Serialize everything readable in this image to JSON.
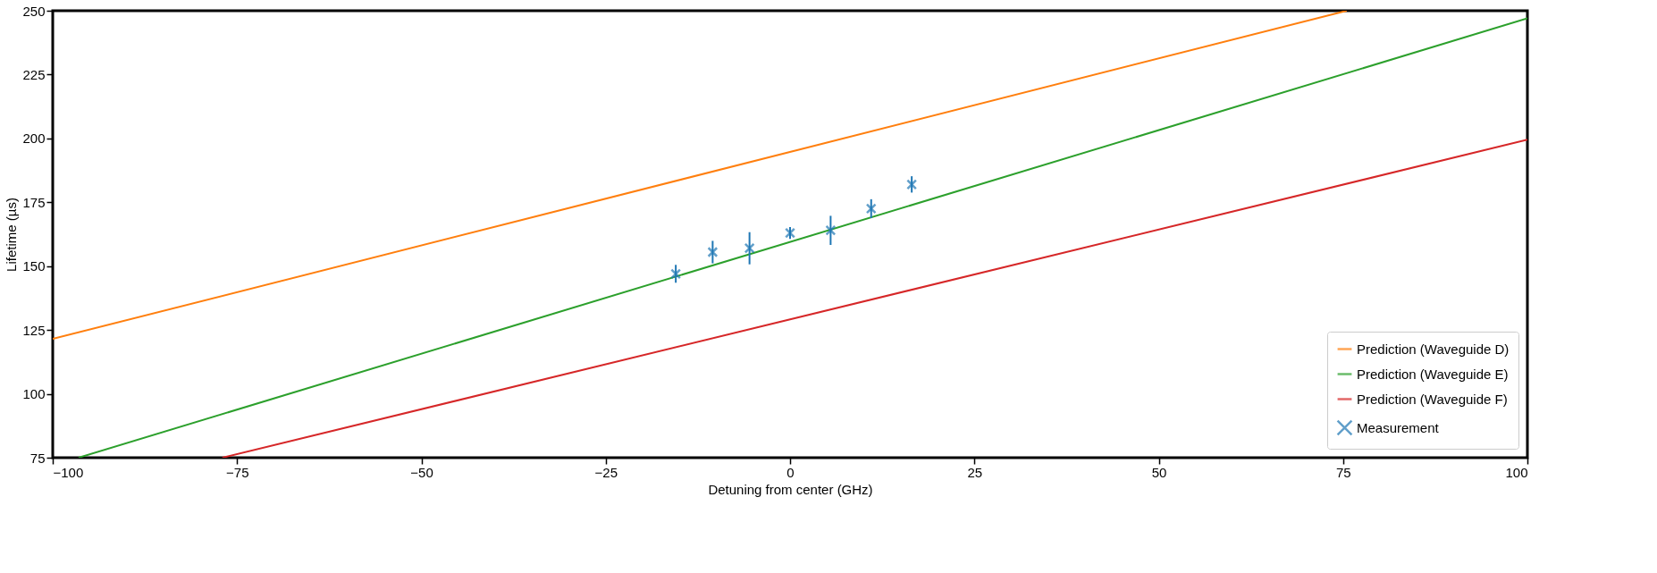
{
  "chart_data": {
    "type": "line",
    "xlabel": "Detuning from center (GHz)",
    "ylabel": "Lifetime (µs)",
    "xlim": [
      -100,
      100
    ],
    "xticks": [
      -100,
      -75,
      -50,
      -25,
      0,
      25,
      50,
      75,
      100
    ],
    "ylim": [
      75,
      250
    ],
    "yticks": [
      75,
      100,
      125,
      150,
      175,
      200,
      225,
      250
    ],
    "grid": false,
    "legend": "bottom right",
    "series": [
      {
        "name": "Prediction (Waveguide D)",
        "color": "#ff7f0e",
        "x": [
          -100,
          75.5
        ],
        "values": [
          121.5,
          250
        ]
      },
      {
        "name": "Prediction (Waveguide E)",
        "color": "#2ca02c",
        "x": [
          -96.5,
          100
        ],
        "values": [
          75,
          247
        ]
      },
      {
        "name": "Prediction (Waveguide F)",
        "color": "#d62728",
        "x": [
          -77,
          100
        ],
        "values": [
          75,
          199.5
        ]
      },
      {
        "name": "Measurement",
        "color": "#1f77b4",
        "type": "scatter",
        "marker": "cross",
        "x": [
          -15.5,
          -10.5,
          -5.5,
          0,
          5.5,
          11,
          16.5
        ],
        "values": [
          147,
          155.5,
          157,
          163,
          164,
          172.5,
          182
        ],
        "errors": [
          3.5,
          4.4,
          6.3,
          2.3,
          5.7,
          3.7,
          3.2
        ]
      }
    ]
  }
}
